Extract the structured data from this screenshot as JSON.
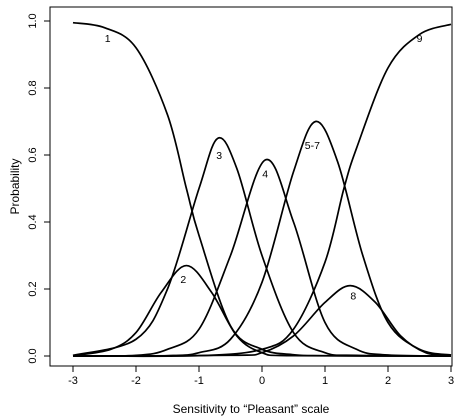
{
  "chart_data": {
    "type": "line",
    "title": "",
    "xlabel": "Sensitivity to “Pleasant” scale",
    "ylabel": "Probability",
    "xlim": [
      -3,
      3
    ],
    "ylim": [
      0,
      1
    ],
    "x_ticks": [
      "-3",
      "-2",
      "-1",
      "0",
      "1",
      "2",
      "3"
    ],
    "y_ticks": [
      "0.0",
      "0.2",
      "0.4",
      "0.6",
      "0.8",
      "1.0"
    ],
    "grid": false,
    "legend": "none",
    "line_color": "#000000",
    "series": [
      {
        "name": "1",
        "peak_x": null,
        "peak_y": null,
        "points": [
          [
            -3,
            0.995
          ],
          [
            -2.5,
            0.98
          ],
          [
            -2,
            0.92
          ],
          [
            -1.5,
            0.72
          ],
          [
            -1.2,
            0.5
          ],
          [
            -1,
            0.36
          ],
          [
            -0.5,
            0.09
          ],
          [
            0,
            0.02
          ],
          [
            0.5,
            0.004
          ],
          [
            1,
            0.001
          ],
          [
            3,
            0
          ]
        ]
      },
      {
        "name": "2",
        "peak_x": -1.2,
        "peak_y": 0.27,
        "points": [
          [
            -3,
            0.001
          ],
          [
            -2.4,
            0.02
          ],
          [
            -2,
            0.07
          ],
          [
            -1.6,
            0.19
          ],
          [
            -1.2,
            0.27
          ],
          [
            -0.8,
            0.19
          ],
          [
            -0.4,
            0.06
          ],
          [
            0,
            0.01
          ],
          [
            0.5,
            0.001
          ],
          [
            3,
            0
          ]
        ]
      },
      {
        "name": "3",
        "peak_x": -0.7,
        "peak_y": 0.65,
        "points": [
          [
            -3,
            0.002
          ],
          [
            -2,
            0.05
          ],
          [
            -1.5,
            0.2
          ],
          [
            -1,
            0.5
          ],
          [
            -0.7,
            0.65
          ],
          [
            -0.4,
            0.56
          ],
          [
            0,
            0.3
          ],
          [
            0.5,
            0.07
          ],
          [
            1,
            0.01
          ],
          [
            1.5,
            0.002
          ],
          [
            3,
            0
          ]
        ]
      },
      {
        "name": "4",
        "peak_x": 0.05,
        "peak_y": 0.585,
        "points": [
          [
            -3,
            0
          ],
          [
            -2,
            0.002
          ],
          [
            -1.5,
            0.02
          ],
          [
            -1,
            0.08
          ],
          [
            -0.5,
            0.3
          ],
          [
            0.05,
            0.585
          ],
          [
            0.5,
            0.4
          ],
          [
            1,
            0.1
          ],
          [
            1.5,
            0.02
          ],
          [
            2,
            0.003
          ],
          [
            3,
            0
          ]
        ]
      },
      {
        "name": "5-7",
        "peak_x": 0.85,
        "peak_y": 0.7,
        "points": [
          [
            -3,
            0
          ],
          [
            -1.5,
            0.001
          ],
          [
            -1,
            0.01
          ],
          [
            -0.5,
            0.05
          ],
          [
            0,
            0.22
          ],
          [
            0.5,
            0.55
          ],
          [
            0.85,
            0.7
          ],
          [
            1.2,
            0.58
          ],
          [
            1.6,
            0.3
          ],
          [
            2,
            0.1
          ],
          [
            2.5,
            0.02
          ],
          [
            3,
            0.003
          ]
        ]
      },
      {
        "name": "8",
        "peak_x": 1.4,
        "peak_y": 0.21,
        "points": [
          [
            -3,
            0
          ],
          [
            -0.5,
            0.002
          ],
          [
            0,
            0.01
          ],
          [
            0.5,
            0.06
          ],
          [
            1,
            0.16
          ],
          [
            1.4,
            0.21
          ],
          [
            1.8,
            0.16
          ],
          [
            2.2,
            0.06
          ],
          [
            2.6,
            0.01
          ],
          [
            3,
            0.002
          ]
        ]
      },
      {
        "name": "9",
        "peak_x": null,
        "peak_y": null,
        "points": [
          [
            -3,
            0
          ],
          [
            -1,
            0.001
          ],
          [
            0,
            0.02
          ],
          [
            0.5,
            0.08
          ],
          [
            1,
            0.28
          ],
          [
            1.3,
            0.5
          ],
          [
            1.5,
            0.62
          ],
          [
            2,
            0.86
          ],
          [
            2.5,
            0.96
          ],
          [
            3,
            0.99
          ]
        ]
      }
    ]
  }
}
